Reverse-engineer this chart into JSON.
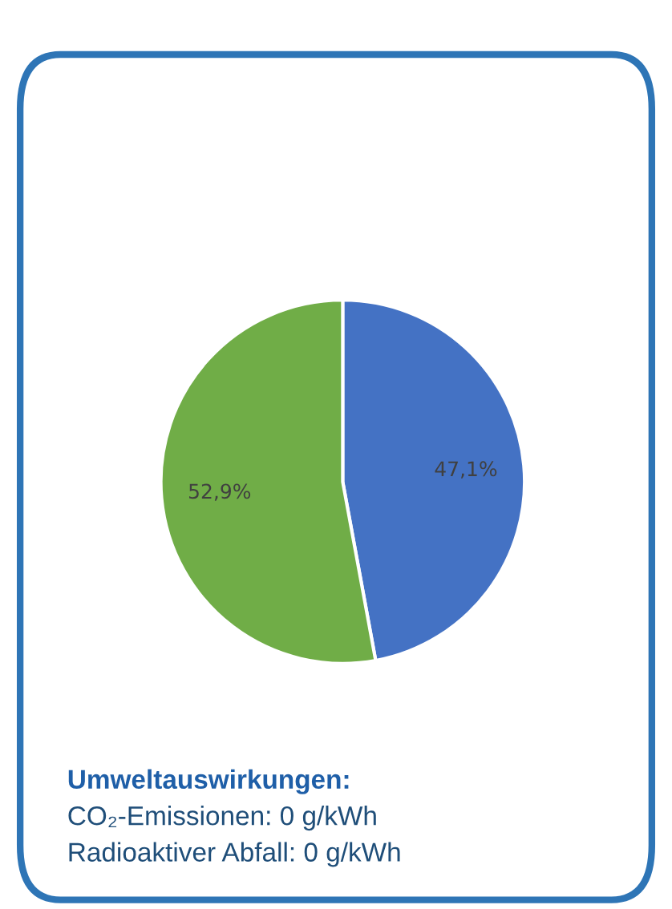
{
  "chart_data": {
    "type": "pie",
    "categories": [
      null,
      null
    ],
    "values": [
      47.1,
      52.9
    ],
    "colors": [
      "#4472c4",
      "#70ad47"
    ],
    "value_labels": [
      "47,1%",
      "52,9%"
    ],
    "annotations": [
      "Umweltauswirkungen:",
      "CO₂-Emissionen: 0 g/kWh",
      "Radioaktiver Abfall: 0 g/kWh"
    ]
  }
}
